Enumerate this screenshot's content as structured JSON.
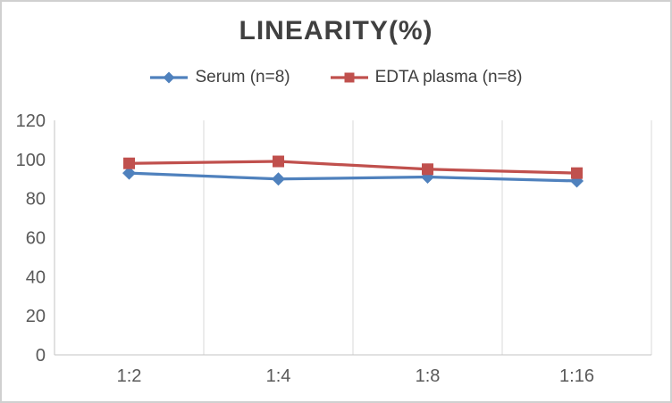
{
  "chart_data": {
    "type": "line",
    "title": "LINEARITY(%)",
    "categories": [
      "1:2",
      "1:4",
      "1:8",
      "1:16"
    ],
    "series": [
      {
        "name": "Serum (n=8)",
        "color": "#4F81BD",
        "marker": "diamond",
        "values": [
          93,
          90,
          91,
          89
        ]
      },
      {
        "name": "EDTA plasma (n=8)",
        "color": "#C0504D",
        "marker": "square",
        "values": [
          98,
          99,
          95,
          93
        ]
      }
    ],
    "xlabel": "",
    "ylabel": "",
    "ylim": [
      0,
      120
    ],
    "yticks": [
      0,
      20,
      40,
      60,
      80,
      100,
      120
    ],
    "grid": "vertical-major-only",
    "legend_position": "top"
  },
  "styles": {
    "background": "#ffffff",
    "border_color": "#d0d0d0",
    "title_color": "#404040",
    "legend_text_color": "#404040",
    "tick_label_color": "#595959",
    "gridline_color": "#d9d9d9",
    "axis_line_color": "#c3c3c3"
  }
}
